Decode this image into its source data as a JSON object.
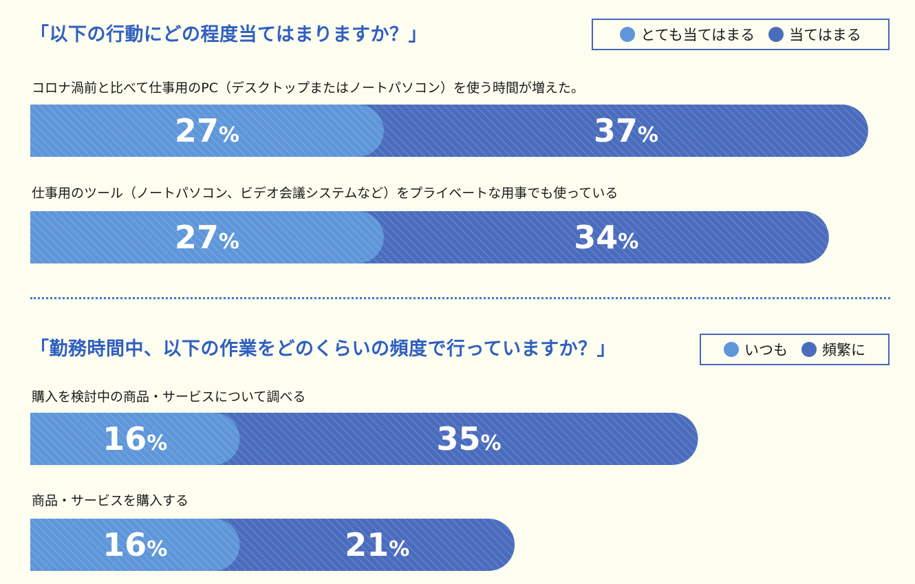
{
  "colors": {
    "light": "#5e96d9",
    "dark": "#4a6cbd",
    "title": "#2f5fc0",
    "background": "#fdfdf0"
  },
  "section1": {
    "title": "「以下の行動にどの程度当てはまりますか？」",
    "legend": [
      "とても当てはまる",
      "当てはまる"
    ]
  },
  "section2": {
    "title": "「勤務時間中、以下の作業をどのくらいの頻度で行っていますか？」",
    "legend": [
      "いつも",
      "頻繁に"
    ]
  },
  "chart_data": [
    {
      "type": "bar",
      "orientation": "horizontal",
      "stacked": true,
      "title": "「以下の行動にどの程度当てはまりますか？」",
      "categories": [
        "コロナ渦前と比べて仕事用のPC（デスクトップまたはノートパソコン）を使う時間が増えた。",
        "仕事用のツール（ノートパソコン、ビデオ会議システムなど）をプライベートな用事でも使っている"
      ],
      "series": [
        {
          "name": "とても当てはまる",
          "values": [
            27,
            27
          ]
        },
        {
          "name": "当てはまる",
          "values": [
            37,
            34
          ]
        }
      ],
      "unit": "%",
      "legend_position": "top-right"
    },
    {
      "type": "bar",
      "orientation": "horizontal",
      "stacked": true,
      "title": "「勤務時間中、以下の作業をどのくらいの頻度で行っていますか？」",
      "categories": [
        "購入を検討中の商品・サービスについて調べる",
        "商品・サービスを購入する"
      ],
      "series": [
        {
          "name": "いつも",
          "values": [
            16,
            16
          ]
        },
        {
          "name": "頻繁に",
          "values": [
            35,
            21
          ]
        }
      ],
      "unit": "%",
      "legend_position": "top-right"
    }
  ]
}
